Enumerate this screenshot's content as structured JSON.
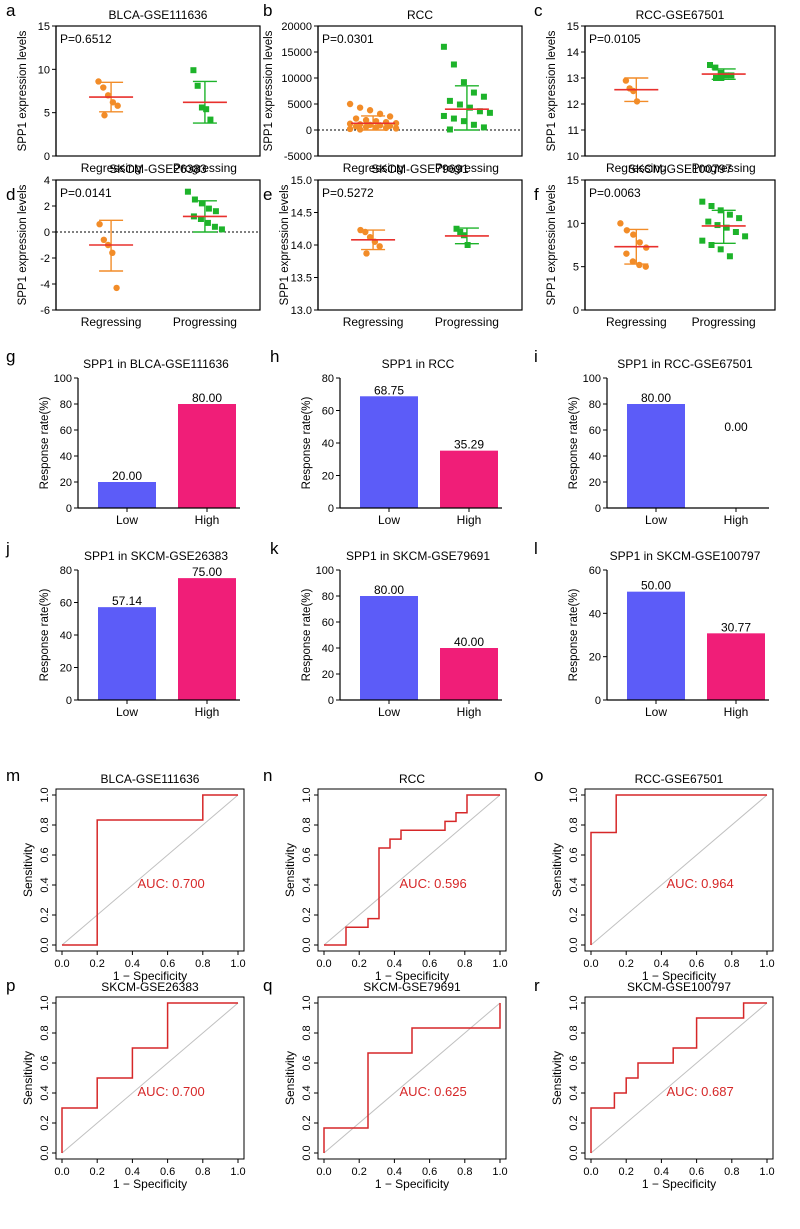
{
  "colors": {
    "orange": "#F28C28",
    "green": "#1DB32A",
    "red": "#E8302D",
    "blue": "#5C5CF8",
    "pink": "#F01E78",
    "roc": "#D62728",
    "diag": "#C0C0C0",
    "axis": "#000000"
  },
  "chart_data": [
    {
      "panel": "a",
      "type": "scatter",
      "title": "BLCA-GSE111636",
      "pvalue": "P=0.6512",
      "ylabel": "SPP1 expression levels",
      "ylim": [
        0,
        15
      ],
      "yticks": [
        0,
        5,
        10,
        15
      ],
      "ytick_labels": [
        "0",
        "5",
        "10",
        "15"
      ],
      "categories": [
        "Regressing",
        "Progressing"
      ],
      "groups": [
        {
          "name": "Regressing",
          "mean": 6.8,
          "sd_low": 5.1,
          "sd_high": 8.5,
          "points": [
            8.6,
            7.9,
            7.0,
            6.2,
            5.8,
            4.7
          ]
        },
        {
          "name": "Progressing",
          "mean": 6.2,
          "sd_low": 3.8,
          "sd_high": 8.6,
          "points": [
            9.9,
            8.1,
            5.6,
            5.4,
            4.2
          ]
        }
      ]
    },
    {
      "panel": "b",
      "type": "scatter",
      "title": "RCC",
      "pvalue": "P=0.0301",
      "ylabel": "SPP1 expression levels",
      "ylim": [
        -5000,
        20000
      ],
      "yticks": [
        -5000,
        0,
        5000,
        10000,
        15000,
        20000
      ],
      "ytick_labels": [
        "-5000",
        "0",
        "5000",
        "10000",
        "15000",
        "20000"
      ],
      "zero_line": true,
      "categories": [
        "Regressing",
        "Progressing"
      ],
      "groups": [
        {
          "name": "Regressing",
          "mean": 1300,
          "sd_low": 0,
          "sd_high": 2700,
          "points": [
            5000,
            4300,
            3800,
            3100,
            2600,
            2200,
            1900,
            1700,
            1500,
            1300,
            1200,
            1100,
            1000,
            900,
            800,
            700,
            600,
            500,
            400,
            300,
            200,
            100
          ]
        },
        {
          "name": "Progressing",
          "mean": 4000,
          "sd_low": 0,
          "sd_high": 8500,
          "points": [
            16000,
            12600,
            9200,
            7200,
            6400,
            5600,
            4900,
            4300,
            3600,
            3300,
            2700,
            2200,
            1700,
            1000,
            500,
            100
          ]
        }
      ]
    },
    {
      "panel": "c",
      "type": "scatter",
      "title": "RCC-GSE67501",
      "pvalue": "P=0.0105",
      "ylabel": "SPP1 expression levels",
      "ylim": [
        10,
        15
      ],
      "yticks": [
        10,
        11,
        12,
        13,
        14,
        15
      ],
      "ytick_labels": [
        "10",
        "11",
        "12",
        "13",
        "14",
        "15"
      ],
      "categories": [
        "Regressing",
        "Progressing"
      ],
      "groups": [
        {
          "name": "Regressing",
          "mean": 12.55,
          "sd_low": 12.1,
          "sd_high": 13.0,
          "points": [
            12.9,
            12.6,
            12.5,
            12.1
          ]
        },
        {
          "name": "Progressing",
          "mean": 13.15,
          "sd_low": 12.95,
          "sd_high": 13.35,
          "points": [
            13.5,
            13.4,
            13.2,
            13.1,
            13.1,
            13.0,
            13.0
          ]
        }
      ]
    },
    {
      "panel": "d",
      "type": "scatter",
      "title": "SKCM-GSE26383",
      "pvalue": "P=0.0141",
      "ylabel": "SPP1 expression levels",
      "ylim": [
        -6,
        4
      ],
      "yticks": [
        -6,
        -4,
        -2,
        0,
        2,
        4
      ],
      "ytick_labels": [
        "-6",
        "-4",
        "-2",
        "0",
        "2",
        "4"
      ],
      "zero_line": true,
      "categories": [
        "Regressing",
        "Progressing"
      ],
      "groups": [
        {
          "name": "Regressing",
          "mean": -1.0,
          "sd_low": -3.0,
          "sd_high": 0.9,
          "points": [
            0.6,
            -0.6,
            -1.0,
            -1.6,
            -4.3
          ]
        },
        {
          "name": "Progressing",
          "mean": 1.2,
          "sd_low": 0.0,
          "sd_high": 2.4,
          "points": [
            3.1,
            2.5,
            2.2,
            1.8,
            1.6,
            1.2,
            1.0,
            0.7,
            0.4,
            0.2
          ]
        }
      ]
    },
    {
      "panel": "e",
      "type": "scatter",
      "title": "SKCM-GSE79691",
      "pvalue": "P=0.5272",
      "ylabel": "SPP1 expression levels",
      "ylim": [
        13,
        15
      ],
      "yticks": [
        13.0,
        13.5,
        14.0,
        14.5,
        15.0
      ],
      "ytick_labels": [
        "13.0",
        "13.5",
        "14.0",
        "14.5",
        "15.0"
      ],
      "categories": [
        "Regressing",
        "Progressing"
      ],
      "groups": [
        {
          "name": "Regressing",
          "mean": 14.08,
          "sd_low": 13.93,
          "sd_high": 14.23,
          "points": [
            14.23,
            14.2,
            14.12,
            14.05,
            13.98,
            13.87
          ]
        },
        {
          "name": "Progressing",
          "mean": 14.14,
          "sd_low": 14.02,
          "sd_high": 14.26,
          "points": [
            14.25,
            14.2,
            14.15,
            14.0
          ]
        }
      ]
    },
    {
      "panel": "f",
      "type": "scatter",
      "title": "SKCM-GSE100797",
      "pvalue": "P=0.0063",
      "ylabel": "SPP1 expression levels",
      "ylim": [
        0,
        15
      ],
      "yticks": [
        0,
        5,
        10,
        15
      ],
      "ytick_labels": [
        "0",
        "5",
        "10",
        "15"
      ],
      "categories": [
        "Regressing",
        "Progressing"
      ],
      "groups": [
        {
          "name": "Regressing",
          "mean": 7.3,
          "sd_low": 5.3,
          "sd_high": 9.3,
          "points": [
            10.0,
            9.2,
            8.7,
            7.8,
            7.2,
            6.5,
            5.6,
            5.2,
            5.0
          ]
        },
        {
          "name": "Progressing",
          "mean": 9.7,
          "sd_low": 7.7,
          "sd_high": 11.5,
          "points": [
            12.5,
            12.0,
            11.5,
            11.0,
            10.6,
            10.2,
            9.8,
            9.5,
            9.0,
            8.5,
            8.0,
            7.5,
            7.0,
            6.2
          ]
        }
      ]
    },
    {
      "panel": "g",
      "type": "bar",
      "title": "SPP1 in BLCA-GSE111636",
      "ylabel": "Response rate(%)",
      "ylim": [
        0,
        100
      ],
      "yticks": [
        0,
        20,
        40,
        60,
        80,
        100
      ],
      "ytick_labels": [
        "0",
        "20",
        "40",
        "60",
        "80",
        "100"
      ],
      "categories": [
        "Low",
        "High"
      ],
      "values": [
        20.0,
        80.0
      ],
      "value_labels": [
        "20.00",
        "80.00"
      ]
    },
    {
      "panel": "h",
      "type": "bar",
      "title": "SPP1 in RCC",
      "ylabel": "Response rate(%)",
      "ylim": [
        0,
        80
      ],
      "yticks": [
        0,
        20,
        40,
        60,
        80
      ],
      "ytick_labels": [
        "0",
        "20",
        "40",
        "60",
        "80"
      ],
      "categories": [
        "Low",
        "High"
      ],
      "values": [
        68.75,
        35.29
      ],
      "value_labels": [
        "68.75",
        "35.29"
      ]
    },
    {
      "panel": "i",
      "type": "bar",
      "title": "SPP1 in RCC-GSE67501",
      "ylabel": "Response rate(%)",
      "ylim": [
        0,
        100
      ],
      "yticks": [
        0,
        20,
        40,
        60,
        80,
        100
      ],
      "ytick_labels": [
        "0",
        "20",
        "40",
        "60",
        "80",
        "100"
      ],
      "categories": [
        "Low",
        "High"
      ],
      "values": [
        80.0,
        0.0
      ],
      "value_labels": [
        "80.00",
        "0.00"
      ]
    },
    {
      "panel": "j",
      "type": "bar",
      "title": "SPP1 in SKCM-GSE26383",
      "ylabel": "Response rate(%)",
      "ylim": [
        0,
        80
      ],
      "yticks": [
        0,
        20,
        40,
        60,
        80
      ],
      "ytick_labels": [
        "0",
        "20",
        "40",
        "60",
        "80"
      ],
      "categories": [
        "Low",
        "High"
      ],
      "values": [
        57.14,
        75.0
      ],
      "value_labels": [
        "57.14",
        "75.00"
      ]
    },
    {
      "panel": "k",
      "type": "bar",
      "title": "SPP1 in SKCM-GSE79691",
      "ylabel": "Response rate(%)",
      "ylim": [
        0,
        100
      ],
      "yticks": [
        0,
        20,
        40,
        60,
        80,
        100
      ],
      "ytick_labels": [
        "0",
        "20",
        "40",
        "60",
        "80",
        "100"
      ],
      "categories": [
        "Low",
        "High"
      ],
      "values": [
        80.0,
        40.0
      ],
      "value_labels": [
        "80.00",
        "40.00"
      ]
    },
    {
      "panel": "l",
      "type": "bar",
      "title": "SPP1 in SKCM-GSE100797",
      "ylabel": "Response rate(%)",
      "ylim": [
        0,
        60
      ],
      "yticks": [
        0,
        20,
        40,
        60
      ],
      "ytick_labels": [
        "0",
        "20",
        "40",
        "60"
      ],
      "categories": [
        "Low",
        "High"
      ],
      "values": [
        50.0,
        30.77
      ],
      "value_labels": [
        "50.00",
        "30.77"
      ]
    },
    {
      "panel": "m",
      "type": "line",
      "title": "BLCA-GSE111636",
      "auc": "AUC: 0.700",
      "xlabel": "1 − Specificity",
      "ylabel": "Sensitivity",
      "xlim": [
        0,
        1
      ],
      "ylim": [
        0,
        1
      ],
      "ticks": [
        0,
        0.2,
        0.4,
        0.6,
        0.8,
        1.0
      ],
      "tick_labels": [
        "0.0",
        "0.2",
        "0.4",
        "0.6",
        "0.8",
        "1.0"
      ],
      "roc": [
        [
          0,
          0
        ],
        [
          0.2,
          0
        ],
        [
          0.2,
          0.833
        ],
        [
          0.8,
          0.833
        ],
        [
          0.8,
          1.0
        ],
        [
          1.0,
          1.0
        ]
      ]
    },
    {
      "panel": "n",
      "type": "line",
      "title": "RCC",
      "auc": "AUC: 0.596",
      "xlabel": "1 − Specificity",
      "ylabel": "Sensitivity",
      "xlim": [
        0,
        1
      ],
      "ylim": [
        0,
        1
      ],
      "ticks": [
        0,
        0.2,
        0.4,
        0.6,
        0.8,
        1.0
      ],
      "tick_labels": [
        "0.0",
        "0.2",
        "0.4",
        "0.6",
        "0.8",
        "1.0"
      ],
      "roc": [
        [
          0,
          0
        ],
        [
          0.125,
          0
        ],
        [
          0.125,
          0.118
        ],
        [
          0.25,
          0.118
        ],
        [
          0.25,
          0.176
        ],
        [
          0.3125,
          0.176
        ],
        [
          0.3125,
          0.647
        ],
        [
          0.375,
          0.647
        ],
        [
          0.375,
          0.706
        ],
        [
          0.4375,
          0.706
        ],
        [
          0.4375,
          0.765
        ],
        [
          0.6875,
          0.765
        ],
        [
          0.6875,
          0.824
        ],
        [
          0.75,
          0.824
        ],
        [
          0.75,
          0.882
        ],
        [
          0.8125,
          0.882
        ],
        [
          0.8125,
          1.0
        ],
        [
          1.0,
          1.0
        ]
      ]
    },
    {
      "panel": "o",
      "type": "line",
      "title": "RCC-GSE67501",
      "auc": "AUC: 0.964",
      "xlabel": "1 − Specificity",
      "ylabel": "Sensitivity",
      "xlim": [
        0,
        1
      ],
      "ylim": [
        0,
        1
      ],
      "ticks": [
        0,
        0.2,
        0.4,
        0.6,
        0.8,
        1.0
      ],
      "tick_labels": [
        "0.0",
        "0.2",
        "0.4",
        "0.6",
        "0.8",
        "1.0"
      ],
      "roc": [
        [
          0,
          0
        ],
        [
          0,
          0.75
        ],
        [
          0.143,
          0.75
        ],
        [
          0.143,
          1.0
        ],
        [
          1.0,
          1.0
        ]
      ]
    },
    {
      "panel": "p",
      "type": "line",
      "title": "SKCM-GSE26383",
      "auc": "AUC: 0.700",
      "xlabel": "1 − Specificity",
      "ylabel": "Sensitivity",
      "xlim": [
        0,
        1
      ],
      "ylim": [
        0,
        1
      ],
      "ticks": [
        0,
        0.2,
        0.4,
        0.6,
        0.8,
        1.0
      ],
      "tick_labels": [
        "0.0",
        "0.2",
        "0.4",
        "0.6",
        "0.8",
        "1.0"
      ],
      "roc": [
        [
          0,
          0
        ],
        [
          0,
          0.3
        ],
        [
          0.2,
          0.3
        ],
        [
          0.2,
          0.5
        ],
        [
          0.4,
          0.5
        ],
        [
          0.4,
          0.7
        ],
        [
          0.6,
          0.7
        ],
        [
          0.6,
          1.0
        ],
        [
          1.0,
          1.0
        ]
      ]
    },
    {
      "panel": "q",
      "type": "line",
      "title": "SKCM-GSE79691",
      "auc": "AUC: 0.625",
      "xlabel": "1 − Specificity",
      "ylabel": "Sensitivity",
      "xlim": [
        0,
        1
      ],
      "ylim": [
        0,
        1
      ],
      "ticks": [
        0,
        0.2,
        0.4,
        0.6,
        0.8,
        1.0
      ],
      "tick_labels": [
        "0.0",
        "0.2",
        "0.4",
        "0.6",
        "0.8",
        "1.0"
      ],
      "roc": [
        [
          0,
          0
        ],
        [
          0,
          0.167
        ],
        [
          0.25,
          0.167
        ],
        [
          0.25,
          0.667
        ],
        [
          0.5,
          0.667
        ],
        [
          0.5,
          0.833
        ],
        [
          1.0,
          0.833
        ],
        [
          1.0,
          1.0
        ]
      ]
    },
    {
      "panel": "r",
      "type": "line",
      "title": "SKCM-GSE100797",
      "auc": "AUC: 0.687",
      "xlabel": "1 − Specificity",
      "ylabel": "Sensitivity",
      "xlim": [
        0,
        1
      ],
      "ylim": [
        0,
        1
      ],
      "ticks": [
        0,
        0.2,
        0.4,
        0.6,
        0.8,
        1.0
      ],
      "tick_labels": [
        "0.0",
        "0.2",
        "0.4",
        "0.6",
        "0.8",
        "1.0"
      ],
      "roc": [
        [
          0,
          0
        ],
        [
          0,
          0.3
        ],
        [
          0.133,
          0.3
        ],
        [
          0.133,
          0.4
        ],
        [
          0.2,
          0.4
        ],
        [
          0.2,
          0.5
        ],
        [
          0.267,
          0.5
        ],
        [
          0.267,
          0.6
        ],
        [
          0.467,
          0.6
        ],
        [
          0.467,
          0.7
        ],
        [
          0.6,
          0.7
        ],
        [
          0.6,
          0.9
        ],
        [
          0.867,
          0.9
        ],
        [
          0.867,
          1.0
        ],
        [
          1.0,
          1.0
        ]
      ]
    }
  ]
}
